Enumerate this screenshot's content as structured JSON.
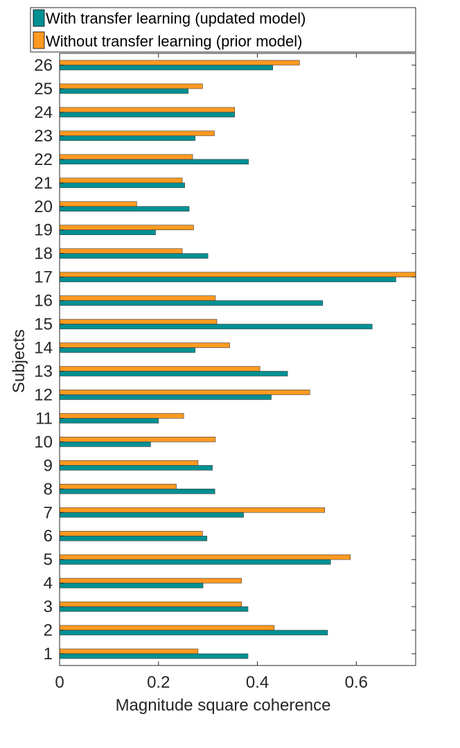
{
  "chart_data": {
    "type": "bar",
    "orientation": "horizontal",
    "title": "",
    "xlabel": "Magnitude square coherence",
    "ylabel": "Subjects",
    "xlim": [
      0,
      0.72
    ],
    "ylim": [
      0.5,
      26.5
    ],
    "xticks": [
      "0",
      "0.2",
      "0.4",
      "0.6"
    ],
    "grid": false,
    "legend_position": "top",
    "categories": [
      "1",
      "2",
      "3",
      "4",
      "5",
      "6",
      "7",
      "8",
      "9",
      "10",
      "11",
      "12",
      "13",
      "14",
      "15",
      "16",
      "17",
      "18",
      "19",
      "20",
      "21",
      "22",
      "23",
      "24",
      "25",
      "26"
    ],
    "series": [
      {
        "name": "With transfer learning (updated model)",
        "color": "#009092",
        "values": [
          0.381,
          0.542,
          0.381,
          0.29,
          0.548,
          0.298,
          0.372,
          0.314,
          0.309,
          0.184,
          0.2,
          0.428,
          0.461,
          0.274,
          0.632,
          0.532,
          0.68,
          0.3,
          0.194,
          0.262,
          0.253,
          0.382,
          0.274,
          0.354,
          0.26,
          0.431
        ]
      },
      {
        "name": "Without transfer learning (prior model)",
        "color": "#ff9a21",
        "values": [
          0.28,
          0.434,
          0.368,
          0.368,
          0.588,
          0.289,
          0.536,
          0.236,
          0.28,
          0.315,
          0.251,
          0.506,
          0.405,
          0.344,
          0.318,
          0.315,
          0.72,
          0.248,
          0.271,
          0.156,
          0.248,
          0.269,
          0.313,
          0.354,
          0.289,
          0.485
        ]
      }
    ]
  }
}
